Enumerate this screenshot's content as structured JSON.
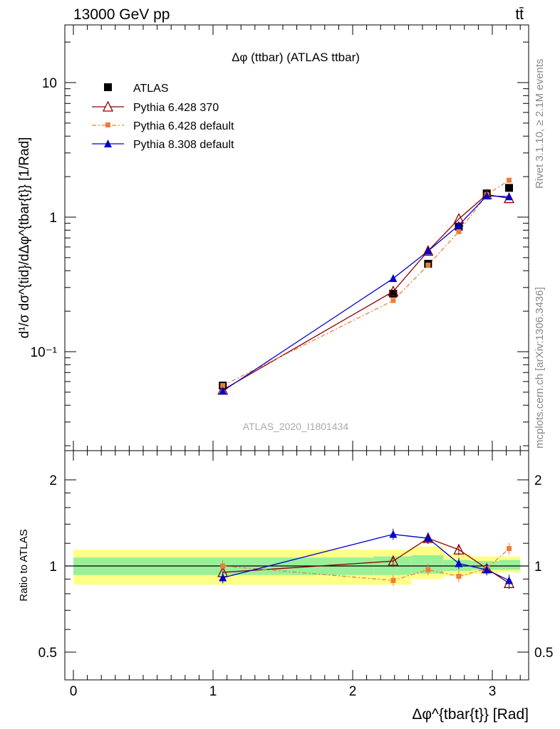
{
  "header": {
    "left": "13000 GeV pp",
    "right": "tt̄"
  },
  "side": {
    "rivet": "Rivet 3.1.10, ≥ 2.1M events",
    "site": "mcplots.cern.ch [arXiv:1306.3436]"
  },
  "watermark": "ATLAS_2020_I1801434",
  "main": {
    "title": "Δφ (ttbar) (ATLAS ttbar)",
    "ylabel": "d¹/σ dσ^{tid}/dΔφ^{tbar{t}} [1/Rad]",
    "yticks": [
      "10⁻¹",
      "1",
      "10"
    ]
  },
  "ratio": {
    "ylabel": "Ratio to ATLAS",
    "yticks": [
      "0.5",
      "1",
      "2"
    ]
  },
  "xaxis": {
    "label": "Δφ^{tbar{t}} [Rad]",
    "ticks": [
      "0",
      "1",
      "2",
      "3"
    ]
  },
  "colors": {
    "atlas": "#000000",
    "py6_370": "#8b0000",
    "py6_def": "#ee7d3a",
    "py8": "#0000cc",
    "band_yellow": "#ffff88",
    "band_green": "#99f099"
  },
  "chart_data": {
    "type": "line",
    "xlim": [
      -0.1,
      3.25
    ],
    "main_ylim": [
      0.02,
      28
    ],
    "main_yscale": "log",
    "ratio_ylim": [
      0.4,
      2.4
    ],
    "ratio_yscale": "log",
    "legend_position": "top-left",
    "series": [
      {
        "name": "ATLAS",
        "key": "atlas",
        "marker": "square",
        "x": [
          1.07,
          2.29,
          2.54,
          2.76,
          2.96,
          3.12
        ],
        "y": [
          0.056,
          0.27,
          0.45,
          0.85,
          1.5,
          1.65
        ]
      },
      {
        "name": "Pythia 6.428 370",
        "key": "py6_370",
        "marker": "open-triangle",
        "line": "solid",
        "x": [
          1.07,
          2.29,
          2.54,
          2.76,
          2.96,
          3.12
        ],
        "y": [
          0.052,
          0.28,
          0.56,
          0.97,
          1.47,
          1.38
        ],
        "ratio": [
          0.95,
          1.04,
          1.25,
          1.14,
          0.98,
          0.87
        ]
      },
      {
        "name": "Pythia 6.428 default",
        "key": "py6_def",
        "marker": "small-square",
        "line": "dashdot",
        "x": [
          1.07,
          2.29,
          2.54,
          2.76,
          2.96,
          3.12
        ],
        "y": [
          0.056,
          0.24,
          0.44,
          0.78,
          1.47,
          1.88
        ],
        "ratio": [
          1.0,
          0.89,
          0.97,
          0.92,
          0.98,
          1.15
        ]
      },
      {
        "name": "Pythia 8.308 default",
        "key": "py8",
        "marker": "filled-triangle",
        "line": "solid",
        "x": [
          1.07,
          2.29,
          2.54,
          2.76,
          2.96,
          3.12
        ],
        "y": [
          0.051,
          0.35,
          0.56,
          0.87,
          1.44,
          1.42
        ],
        "ratio": [
          0.91,
          1.29,
          1.25,
          1.02,
          0.97,
          0.89
        ]
      }
    ],
    "ratio_band": {
      "x_edges": [
        0.0,
        2.15,
        2.42,
        2.65,
        2.85,
        3.05,
        3.2
      ],
      "yellow_lo": [
        0.86,
        0.86,
        0.9,
        0.92,
        0.94,
        0.95
      ],
      "yellow_hi": [
        1.14,
        1.14,
        1.17,
        1.1,
        1.08,
        1.08
      ],
      "green_lo": [
        0.93,
        0.93,
        0.94,
        0.96,
        0.97,
        0.97
      ],
      "green_hi": [
        1.07,
        1.08,
        1.09,
        1.05,
        1.04,
        1.05
      ]
    }
  }
}
